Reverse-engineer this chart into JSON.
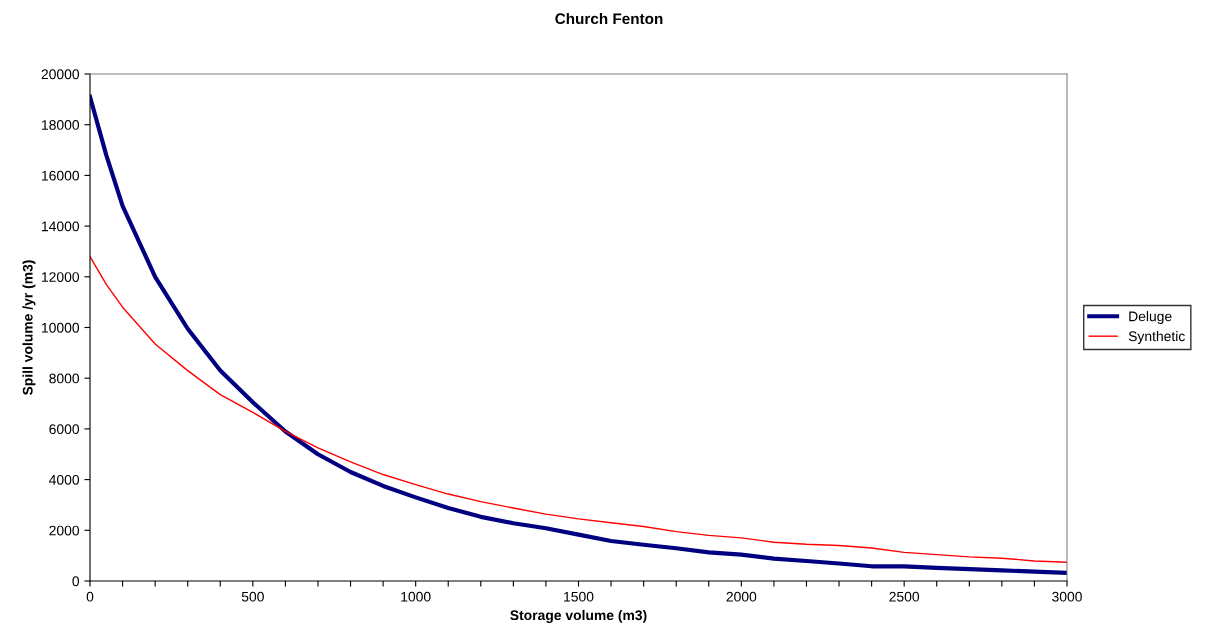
{
  "chart_data": {
    "type": "line",
    "title": "Church Fenton",
    "xlabel": "Storage volume (m3)",
    "ylabel": "Spill volume /yr (m3)",
    "x": [
      0,
      50,
      100,
      200,
      300,
      400,
      500,
      600,
      700,
      800,
      900,
      1000,
      1100,
      1200,
      1300,
      1400,
      1500,
      1600,
      1700,
      1800,
      1900,
      2000,
      2100,
      2200,
      2300,
      2400,
      2500,
      2600,
      2700,
      2800,
      2900,
      3000
    ],
    "series": [
      {
        "name": "Deluge",
        "color": "#000080",
        "values": [
          19100,
          16800,
          14800,
          12000,
          9950,
          8300,
          7050,
          5900,
          5000,
          4300,
          3750,
          3300,
          2880,
          2530,
          2280,
          2080,
          1830,
          1580,
          1430,
          1290,
          1130,
          1040,
          880,
          790,
          690,
          580,
          580,
          520,
          470,
          420,
          370,
          320
        ]
      },
      {
        "name": "Synthetic",
        "color": "#ff0000",
        "values": [
          12800,
          11700,
          10800,
          9350,
          8300,
          7350,
          6650,
          5900,
          5250,
          4700,
          4200,
          3800,
          3430,
          3130,
          2880,
          2640,
          2450,
          2300,
          2150,
          1950,
          1800,
          1700,
          1530,
          1450,
          1400,
          1300,
          1130,
          1040,
          950,
          900,
          790,
          740
        ]
      }
    ],
    "xlim": [
      0,
      3000
    ],
    "xticks": [
      0,
      {
        "value": 100,
        "label": null
      },
      {
        "value": 200,
        "label": null
      },
      {
        "value": 300,
        "label": null
      },
      {
        "value": 400,
        "label": null
      },
      500,
      {
        "value": 600,
        "label": null
      },
      {
        "value": 700,
        "label": null
      },
      {
        "value": 800,
        "label": null
      },
      {
        "value": 900,
        "label": null
      },
      1000,
      {
        "value": 1100,
        "label": null
      },
      {
        "value": 1200,
        "label": null
      },
      {
        "value": 1300,
        "label": null
      },
      {
        "value": 1400,
        "label": null
      },
      1500,
      {
        "value": 1600,
        "label": null
      },
      {
        "value": 1700,
        "label": null
      },
      {
        "value": 1800,
        "label": null
      },
      {
        "value": 1900,
        "label": null
      },
      2000,
      {
        "value": 2100,
        "label": null
      },
      {
        "value": 2200,
        "label": null
      },
      {
        "value": 2300,
        "label": null
      },
      {
        "value": 2400,
        "label": null
      },
      2500,
      {
        "value": 2600,
        "label": null
      },
      {
        "value": 2700,
        "label": null
      },
      {
        "value": 2800,
        "label": null
      },
      {
        "value": 2900,
        "label": null
      },
      3000
    ],
    "ylim": [
      0,
      20000
    ],
    "yticks": [
      0,
      2000,
      4000,
      6000,
      8000,
      10000,
      12000,
      14000,
      16000,
      18000,
      20000
    ],
    "grid": false,
    "legend": "right",
    "marker": "none",
    "line_style": "solid"
  }
}
